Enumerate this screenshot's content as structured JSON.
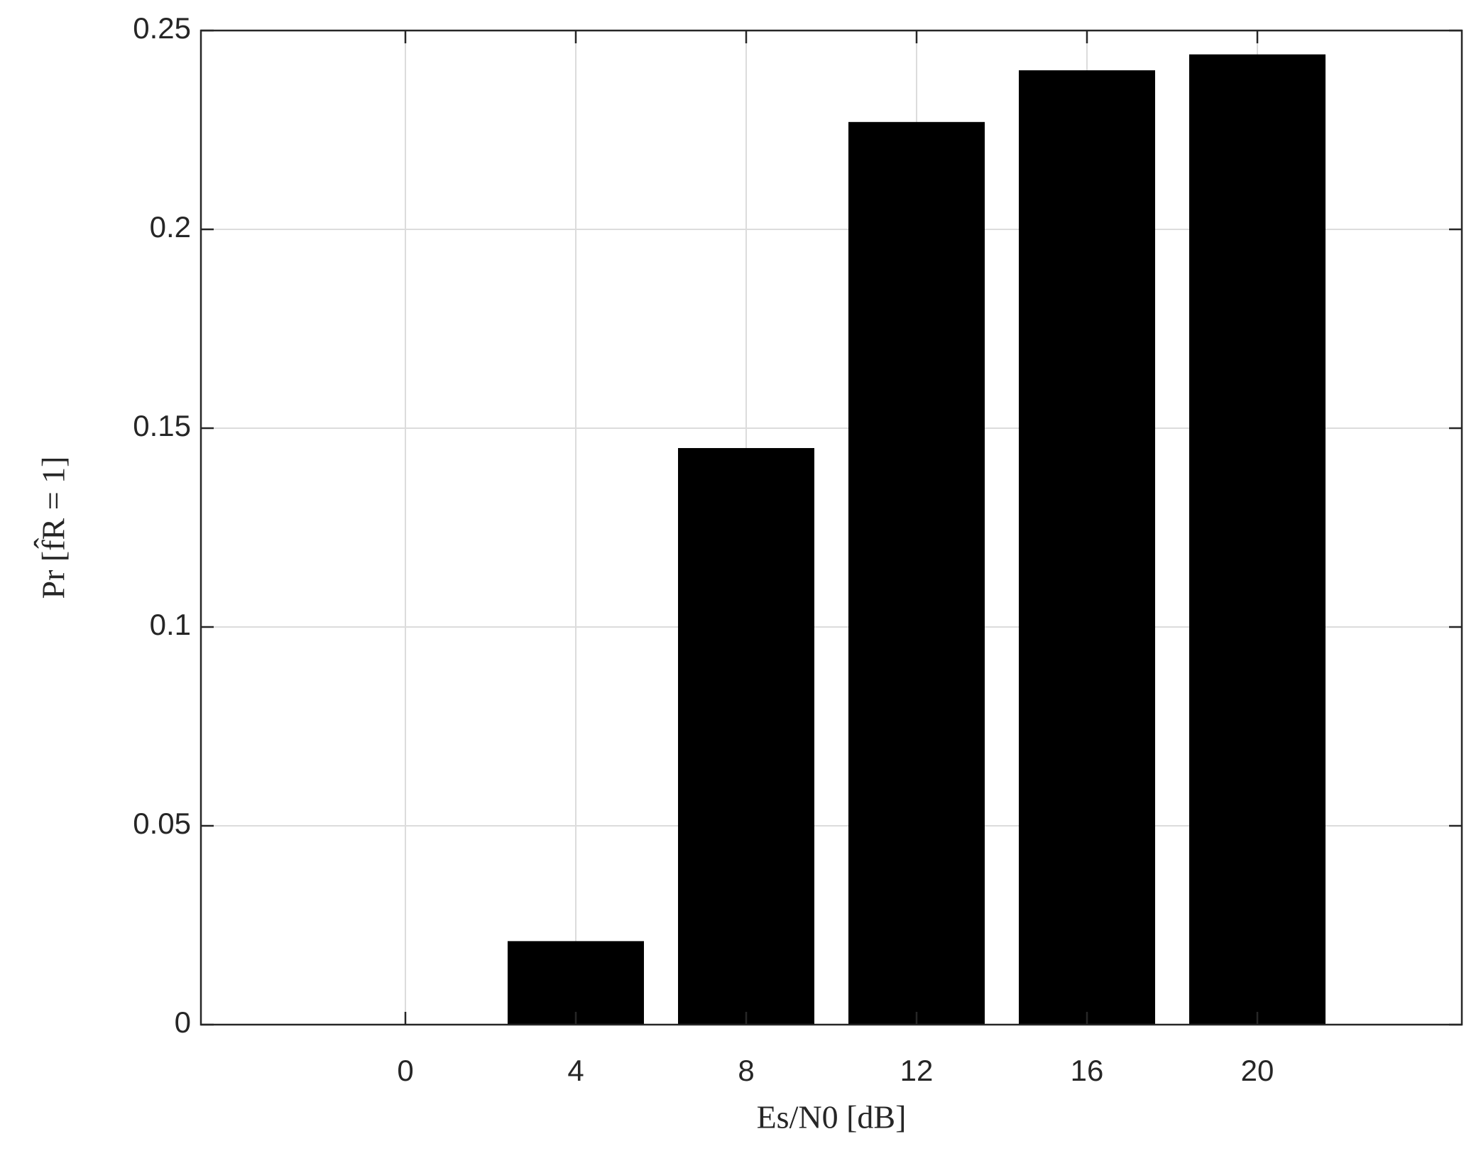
{
  "chart_data": {
    "type": "bar",
    "x": [
      0,
      4,
      8,
      12,
      16,
      20
    ],
    "values": [
      0,
      0.021,
      0.145,
      0.227,
      0.24,
      0.244
    ],
    "color": "#000000",
    "xlabel": "Es/N0 [dB]",
    "ylabel": "Pr [f̂R = 1]",
    "xlim": [
      -4.8,
      24.8
    ],
    "xticks": [
      0,
      4,
      8,
      12,
      16,
      20
    ],
    "ylim": [
      0,
      0.25
    ],
    "yticks": [
      0,
      0.05,
      0.1,
      0.15,
      0.2,
      0.25
    ],
    "grid": true
  }
}
